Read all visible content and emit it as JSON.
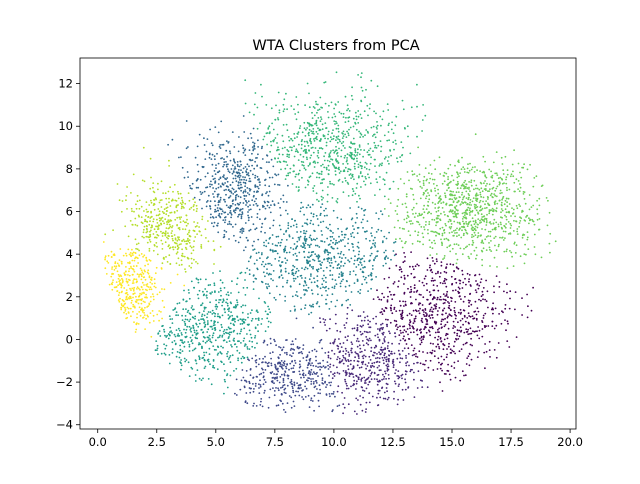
{
  "chart_data": {
    "type": "scatter",
    "title": "WTA Clusters from PCA",
    "xlabel": "",
    "ylabel": "",
    "xlim": [
      -0.75,
      20.25
    ],
    "ylim": [
      -4.2,
      13.2
    ],
    "xticks": [
      0.0,
      2.5,
      5.0,
      7.5,
      10.0,
      12.5,
      15.0,
      17.5,
      20.0
    ],
    "xtick_labels": [
      "0.0",
      "2.5",
      "5.0",
      "7.5",
      "10.0",
      "12.5",
      "15.0",
      "17.5",
      "20.0"
    ],
    "yticks": [
      -4,
      -2,
      0,
      2,
      4,
      6,
      8,
      10,
      12
    ],
    "ytick_labels": [
      "−4",
      "−2",
      "0",
      "2",
      "4",
      "6",
      "8",
      "10",
      "12"
    ],
    "grid": false,
    "legend": "none",
    "colormap": "viridis",
    "clusters": [
      {
        "label": "0",
        "color": "#440154",
        "center": [
          14.2,
          1.1
        ],
        "spread": [
          1.8,
          1.6
        ],
        "n": 900
      },
      {
        "label": "1",
        "color": "#482878",
        "center": [
          11.3,
          -0.9
        ],
        "spread": [
          1.5,
          1.2
        ],
        "n": 650
      },
      {
        "label": "2",
        "color": "#3e4989",
        "center": [
          8.3,
          -1.6
        ],
        "spread": [
          1.3,
          0.9
        ],
        "n": 500
      },
      {
        "label": "3",
        "color": "#31688e",
        "center": [
          5.8,
          6.9
        ],
        "spread": [
          1.3,
          1.4
        ],
        "n": 650
      },
      {
        "label": "4",
        "color": "#26828e",
        "center": [
          9.3,
          3.8
        ],
        "spread": [
          1.9,
          1.3
        ],
        "n": 800
      },
      {
        "label": "5",
        "color": "#1f9e89",
        "center": [
          4.8,
          0.4
        ],
        "spread": [
          1.6,
          1.3
        ],
        "n": 750
      },
      {
        "label": "6",
        "color": "#35b779",
        "center": [
          9.7,
          8.9
        ],
        "spread": [
          1.9,
          1.4
        ],
        "n": 850
      },
      {
        "label": "7",
        "color": "#6ece58",
        "center": [
          15.7,
          6.1
        ],
        "spread": [
          1.6,
          1.2
        ],
        "n": 950
      },
      {
        "label": "8",
        "color": "#b5de2b",
        "center": [
          3.0,
          5.3
        ],
        "spread": [
          0.9,
          1.1
        ],
        "n": 450
      },
      {
        "label": "9",
        "color": "#fde725",
        "center": [
          1.4,
          2.4
        ],
        "spread": [
          0.7,
          1.1
        ],
        "n": 450
      }
    ]
  }
}
